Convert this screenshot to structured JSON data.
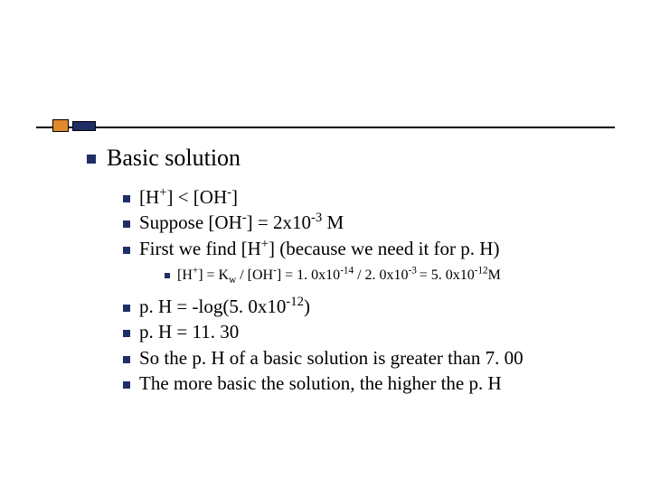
{
  "colors": {
    "bullet": "#1f2f66",
    "orange": "#e08a2c",
    "line": "#000000",
    "text": "#000000",
    "background": "#ffffff"
  },
  "slide": {
    "heading": "Basic solution",
    "points": {
      "p1_pre": "[H",
      "p1_sup1": "+",
      "p1_mid": "] < [OH",
      "p1_sup2": "-",
      "p1_post": "]",
      "p2_pre": "Suppose [OH",
      "p2_sup1": "-",
      "p2_mid": "] = 2x10",
      "p2_sup2": "-3",
      "p2_post": " M",
      "p3_pre": "First we find [H",
      "p3_sup1": "+",
      "p3_post": "] (because we need it for p. H)",
      "sub_pre": "[H",
      "sub_sup1": "+",
      "sub_a": "] = K",
      "sub_sub1": "w",
      "sub_b": " / [OH",
      "sub_sup2": "-",
      "sub_c": "] = 1. 0x10",
      "sub_sup3": "-14",
      "sub_d": " / 2. 0x10",
      "sub_sup4": "-3 ",
      "sub_e": " = 5. 0x10",
      "sub_sup5": "-12",
      "sub_f": "M",
      "p4_pre": "p. H = -log(5. 0x10",
      "p4_sup": "-12",
      "p4_post": ")",
      "p5": "p. H = 11. 30",
      "p6": "So the p. H of a basic solution is greater than 7. 00",
      "p7": "The more basic the solution, the higher the p. H"
    }
  }
}
